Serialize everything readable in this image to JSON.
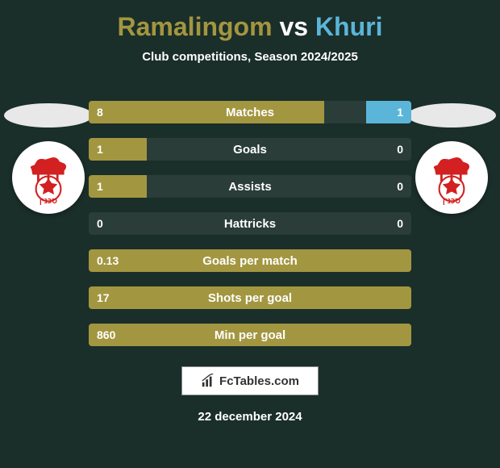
{
  "title": {
    "player1": "Ramalingom",
    "vs": "vs",
    "player2": "Khuri"
  },
  "subtitle": "Club competitions, Season 2024/2025",
  "colors": {
    "player1_bar": "#a39640",
    "player2_bar": "#5bb5d8",
    "row_bg": "#2a3d38",
    "page_bg": "#1a2e2a",
    "text": "#ffffff",
    "badge_red": "#d32020"
  },
  "stats": [
    {
      "label": "Matches",
      "val1": "8",
      "val2": "1",
      "w1": 73,
      "w2": 14
    },
    {
      "label": "Goals",
      "val1": "1",
      "val2": "0",
      "w1": 18,
      "w2": 0
    },
    {
      "label": "Assists",
      "val1": "1",
      "val2": "0",
      "w1": 18,
      "w2": 0
    },
    {
      "label": "Hattricks",
      "val1": "0",
      "val2": "0",
      "w1": 0,
      "w2": 0
    },
    {
      "label": "Goals per match",
      "val1": "0.13",
      "val2": "",
      "w1": 100,
      "w2": 0
    },
    {
      "label": "Shots per goal",
      "val1": "17",
      "val2": "",
      "w1": 100,
      "w2": 0
    },
    {
      "label": "Min per goal",
      "val1": "860",
      "val2": "",
      "w1": 100,
      "w2": 0
    }
  ],
  "footer": {
    "site": "FcTables.com",
    "date": "22 december 2024"
  }
}
